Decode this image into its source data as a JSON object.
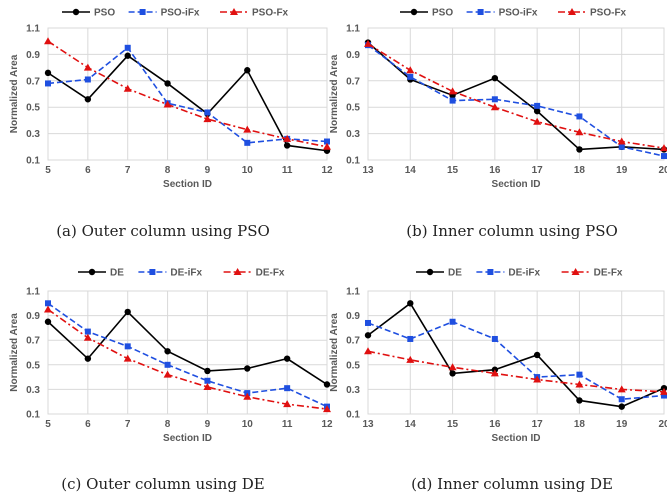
{
  "chart_data": [
    {
      "type": "line",
      "caption": "(a) Outer column using PSO",
      "xlabel": "Section ID",
      "ylabel": "Normalized Area",
      "x": [
        5,
        6,
        7,
        8,
        9,
        10,
        11,
        12
      ],
      "ylim": [
        0.1,
        1.1
      ],
      "yticks": [
        "0.1",
        "0.3",
        "0.5",
        "0.7",
        "0.9",
        "1.1"
      ],
      "legend_position": "top",
      "grid": true,
      "series": [
        {
          "name": "PSO",
          "values": [
            0.76,
            0.56,
            0.89,
            0.68,
            0.45,
            0.78,
            0.21,
            0.17
          ]
        },
        {
          "name": "PSO-iFx",
          "values": [
            0.68,
            0.71,
            0.95,
            0.53,
            0.46,
            0.23,
            0.26,
            0.24
          ]
        },
        {
          "name": "PSO-Fx",
          "values": [
            1.0,
            0.8,
            0.64,
            0.52,
            0.41,
            0.33,
            0.26,
            0.2
          ]
        }
      ]
    },
    {
      "type": "line",
      "caption": "(b) Inner column using PSO",
      "xlabel": "Section ID",
      "ylabel": "Normalized Area",
      "x": [
        13,
        14,
        15,
        16,
        17,
        18,
        19,
        20
      ],
      "ylim": [
        0.1,
        1.1
      ],
      "yticks": [
        "0.1",
        "0.3",
        "0.5",
        "0.7",
        "0.9",
        "1.1"
      ],
      "legend_position": "top",
      "grid": true,
      "series": [
        {
          "name": "PSO",
          "values": [
            0.99,
            0.71,
            0.59,
            0.72,
            0.47,
            0.18,
            0.2,
            0.18
          ]
        },
        {
          "name": "PSO-iFx",
          "values": [
            0.97,
            0.73,
            0.55,
            0.56,
            0.51,
            0.43,
            0.2,
            0.13
          ]
        },
        {
          "name": "PSO-Fx",
          "values": [
            0.98,
            0.78,
            0.62,
            0.5,
            0.39,
            0.31,
            0.24,
            0.19
          ]
        }
      ]
    },
    {
      "type": "line",
      "caption": "(c) Outer column using DE",
      "xlabel": "Section ID",
      "ylabel": "Normalized Area",
      "x": [
        5,
        6,
        7,
        8,
        9,
        10,
        11,
        12
      ],
      "ylim": [
        0.1,
        1.1
      ],
      "yticks": [
        "0.1",
        "0.3",
        "0.5",
        "0.7",
        "0.9",
        "1.1"
      ],
      "legend_position": "top",
      "grid": true,
      "series": [
        {
          "name": "DE",
          "values": [
            0.85,
            0.55,
            0.93,
            0.61,
            0.45,
            0.47,
            0.55,
            0.34
          ]
        },
        {
          "name": "DE-iFx",
          "values": [
            1.0,
            0.77,
            0.65,
            0.5,
            0.37,
            0.27,
            0.31,
            0.16
          ]
        },
        {
          "name": "DE-Fx",
          "values": [
            0.95,
            0.72,
            0.55,
            0.42,
            0.32,
            0.24,
            0.18,
            0.14
          ]
        }
      ]
    },
    {
      "type": "line",
      "caption": "(d) Inner column using DE",
      "xlabel": "Section ID",
      "ylabel": "Normalized Area",
      "x": [
        13,
        14,
        15,
        16,
        17,
        18,
        19,
        20
      ],
      "ylim": [
        0.1,
        1.1
      ],
      "yticks": [
        "0.1",
        "0.3",
        "0.5",
        "0.7",
        "0.9",
        "1.1"
      ],
      "legend_position": "top",
      "grid": true,
      "series": [
        {
          "name": "DE",
          "values": [
            0.74,
            1.0,
            0.43,
            0.46,
            0.58,
            0.21,
            0.16,
            0.31
          ]
        },
        {
          "name": "DE-iFx",
          "values": [
            0.84,
            0.71,
            0.85,
            0.71,
            0.4,
            0.42,
            0.22,
            0.25
          ]
        },
        {
          "name": "DE-Fx",
          "values": [
            0.61,
            0.54,
            0.48,
            0.43,
            0.38,
            0.34,
            0.3,
            0.28
          ]
        }
      ]
    }
  ],
  "series_styles": [
    {
      "color": "#000000",
      "marker": "circle",
      "dash": "solid"
    },
    {
      "color": "#1f4fe0",
      "marker": "square",
      "dash": "dashed"
    },
    {
      "color": "#e01010",
      "marker": "triangle",
      "dash": "dashdot"
    }
  ]
}
